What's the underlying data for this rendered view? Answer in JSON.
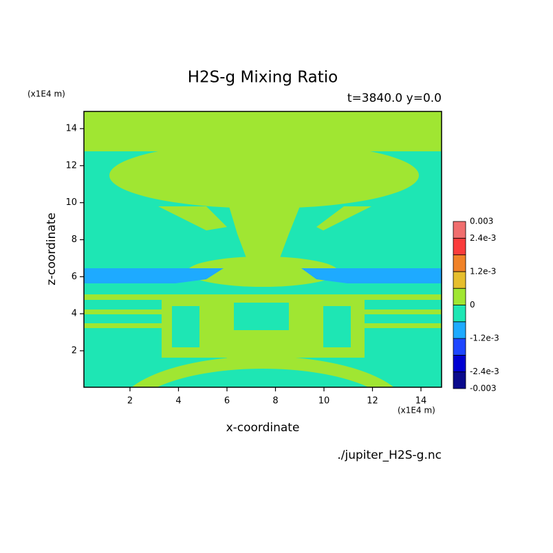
{
  "chart_data": {
    "type": "contour",
    "title": "H2S-g Mixing Ratio",
    "subtitle": "t=3840.0 y=0.0",
    "x_label": "x-coordinate",
    "y_label": "z-coordinate",
    "x_unit": "(x1E4 m)",
    "y_unit": "(x1E4 m)",
    "source": "./jupiter_H2S-g.nc",
    "xlim": [
      0.1,
      14.85
    ],
    "ylim": [
      0.03,
      14.93
    ],
    "xticks": [
      2,
      4,
      6,
      8,
      10,
      12,
      14
    ],
    "yticks": [
      2,
      4,
      6,
      8,
      10,
      12,
      14
    ],
    "clim": [
      -0.003,
      0.003
    ],
    "cticks": [
      {
        "value": 0.003,
        "label": "0.003"
      },
      {
        "value": 0.0024,
        "label": "2.4e-3"
      },
      {
        "value": 0.0012,
        "label": "1.2e-3"
      },
      0,
      {
        "value": -0.0012,
        "label": "-1.2e-3"
      },
      {
        "value": -0.0024,
        "label": "-2.4e-3"
      },
      {
        "value": -0.003,
        "label": "-0.003"
      }
    ],
    "colors": [
      "#0a0a8c",
      "#0000d2",
      "#1e46ff",
      "#1eaaff",
      "#1ee6b4",
      "#a0e632",
      "#e6be2d",
      "#f08228",
      "#fa3c3c",
      "#f06e6e"
    ]
  }
}
